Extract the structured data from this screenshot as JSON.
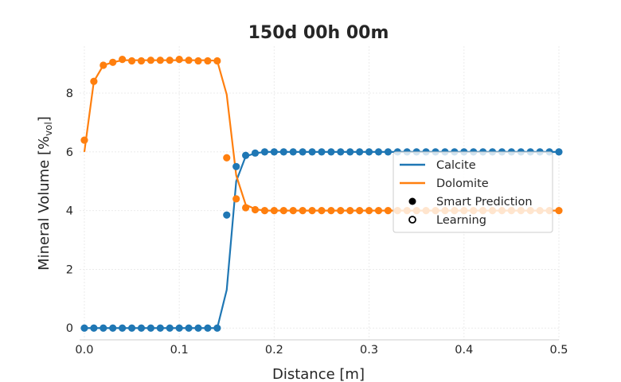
{
  "chart_data": {
    "type": "line",
    "title": "150d 00h 00m",
    "xlabel": "Distance [m]",
    "ylabel": "Mineral Volume [%vol]",
    "ylabel_main": "Mineral Volume [%",
    "ylabel_sub": "vol",
    "ylabel_end": "]",
    "xlim": [
      -0.005,
      0.5
    ],
    "ylim": [
      -0.4,
      9.6
    ],
    "xticks": [
      0.0,
      0.1,
      0.2,
      0.3,
      0.4,
      0.5
    ],
    "xtick_labels": [
      "0.0",
      "0.1",
      "0.2",
      "0.3",
      "0.4",
      "0.5"
    ],
    "yticks": [
      0,
      2,
      4,
      6,
      8
    ],
    "ytick_labels": [
      "0",
      "2",
      "4",
      "6",
      "8"
    ],
    "grid": true,
    "legend_position": "center-right",
    "legend": {
      "line_entries": [
        "Calcite",
        "Dolomite"
      ],
      "marker_entries": [
        "Smart Prediction",
        "Learning"
      ]
    },
    "series": [
      {
        "name": "Calcite",
        "color": "#1f77b4",
        "line": {
          "x": [
            0.0,
            0.01,
            0.02,
            0.03,
            0.04,
            0.05,
            0.06,
            0.07,
            0.08,
            0.09,
            0.1,
            0.11,
            0.12,
            0.13,
            0.14,
            0.15,
            0.16,
            0.17,
            0.18,
            0.19,
            0.2,
            0.21,
            0.22,
            0.23,
            0.24,
            0.25,
            0.26,
            0.27,
            0.28,
            0.29,
            0.3,
            0.31,
            0.32,
            0.33,
            0.34,
            0.35,
            0.36,
            0.37,
            0.38,
            0.39,
            0.4,
            0.41,
            0.42,
            0.43,
            0.44,
            0.45,
            0.46,
            0.47,
            0.48,
            0.49,
            0.5
          ],
          "y": [
            0,
            0,
            0,
            0,
            0,
            0,
            0,
            0,
            0,
            0,
            0,
            0,
            0,
            0,
            0,
            1.3,
            5.0,
            5.85,
            5.95,
            6.0,
            6.0,
            6.0,
            6.0,
            6.0,
            6.0,
            6.0,
            6.0,
            6.0,
            6.0,
            6.0,
            6.0,
            6.0,
            6.0,
            6.0,
            6.0,
            6.0,
            6.0,
            6.0,
            6.0,
            6.0,
            6.0,
            6.0,
            6.0,
            6.0,
            6.0,
            6.0,
            6.0,
            6.0,
            6.0,
            6.0,
            6.0
          ]
        },
        "smart_prediction": {
          "x": [
            0.0,
            0.01,
            0.02,
            0.03,
            0.04,
            0.05,
            0.06,
            0.07,
            0.08,
            0.09,
            0.1,
            0.11,
            0.12,
            0.13,
            0.14,
            0.15,
            0.16,
            0.17,
            0.18,
            0.19,
            0.2,
            0.21,
            0.22,
            0.23,
            0.24,
            0.25,
            0.26,
            0.27,
            0.28,
            0.29,
            0.3,
            0.31,
            0.32,
            0.33,
            0.34,
            0.35,
            0.36,
            0.37,
            0.38,
            0.39,
            0.4,
            0.41,
            0.42,
            0.43,
            0.44,
            0.45,
            0.46,
            0.47,
            0.48,
            0.49,
            0.5
          ],
          "y": [
            0,
            0,
            0,
            0,
            0,
            0,
            0,
            0,
            0,
            0,
            0,
            0,
            0,
            0,
            0,
            3.85,
            5.5,
            5.88,
            5.96,
            6.0,
            6.0,
            6.0,
            6.0,
            6.0,
            6.0,
            6.0,
            6.0,
            6.0,
            6.0,
            6.0,
            6.0,
            6.0,
            6.0,
            6.0,
            6.0,
            6.0,
            6.0,
            6.0,
            6.0,
            6.0,
            6.0,
            6.0,
            6.0,
            6.0,
            6.0,
            6.0,
            6.0,
            6.0,
            6.0,
            6.0,
            6.0
          ]
        }
      },
      {
        "name": "Dolomite",
        "color": "#ff7f0e",
        "line": {
          "x": [
            0.0,
            0.01,
            0.02,
            0.03,
            0.04,
            0.05,
            0.06,
            0.07,
            0.08,
            0.09,
            0.1,
            0.11,
            0.12,
            0.13,
            0.14,
            0.15,
            0.16,
            0.17,
            0.18,
            0.19,
            0.2,
            0.21,
            0.22,
            0.23,
            0.24,
            0.25,
            0.26,
            0.27,
            0.28,
            0.29,
            0.3,
            0.31,
            0.32,
            0.33,
            0.34,
            0.35,
            0.36,
            0.37,
            0.38,
            0.39,
            0.4,
            0.41,
            0.42,
            0.43,
            0.44,
            0.45,
            0.46,
            0.47,
            0.48,
            0.49,
            0.5
          ],
          "y": [
            6.0,
            8.4,
            8.95,
            9.05,
            9.12,
            9.12,
            9.12,
            9.12,
            9.12,
            9.12,
            9.12,
            9.12,
            9.12,
            9.12,
            9.1,
            7.95,
            5.2,
            4.2,
            4.05,
            4.0,
            4.0,
            4.0,
            4.0,
            4.0,
            4.0,
            4.0,
            4.0,
            4.0,
            4.0,
            4.0,
            4.0,
            4.0,
            4.0,
            4.0,
            4.0,
            4.0,
            4.0,
            4.0,
            4.0,
            4.0,
            4.0,
            4.0,
            4.0,
            4.0,
            4.0,
            4.0,
            4.0,
            4.0,
            4.0,
            4.0,
            4.0
          ]
        },
        "smart_prediction": {
          "x": [
            0.0,
            0.01,
            0.02,
            0.03,
            0.04,
            0.05,
            0.06,
            0.07,
            0.08,
            0.09,
            0.1,
            0.11,
            0.12,
            0.13,
            0.14,
            0.15,
            0.16,
            0.17,
            0.18,
            0.19,
            0.2,
            0.21,
            0.22,
            0.23,
            0.24,
            0.25,
            0.26,
            0.27,
            0.28,
            0.29,
            0.3,
            0.31,
            0.32,
            0.33,
            0.34,
            0.35,
            0.36,
            0.37,
            0.38,
            0.39,
            0.4,
            0.41,
            0.42,
            0.43,
            0.44,
            0.45,
            0.46,
            0.47,
            0.48,
            0.49,
            0.5
          ],
          "y": [
            6.4,
            8.4,
            8.95,
            9.05,
            9.15,
            9.1,
            9.1,
            9.12,
            9.12,
            9.12,
            9.15,
            9.12,
            9.1,
            9.1,
            9.1,
            5.8,
            4.4,
            4.1,
            4.03,
            4.0,
            4.0,
            4.0,
            4.0,
            4.0,
            4.0,
            4.0,
            4.0,
            4.0,
            4.0,
            4.0,
            4.0,
            4.0,
            4.0,
            4.0,
            4.0,
            4.0,
            4.0,
            4.0,
            4.0,
            4.0,
            4.0,
            4.0,
            4.0,
            4.0,
            4.0,
            4.0,
            4.0,
            4.0,
            4.0,
            4.0,
            4.0
          ]
        }
      }
    ]
  }
}
